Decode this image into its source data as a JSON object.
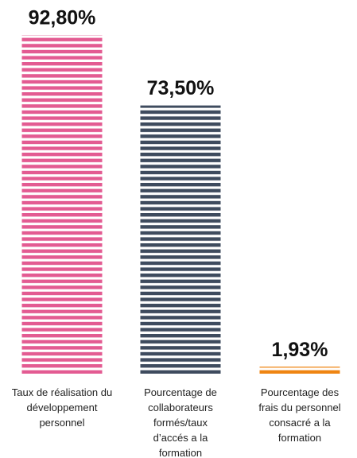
{
  "chart_data": {
    "type": "bar",
    "categories": [
      "Taux de réalisation du développement personnel",
      "Pourcentage de collaborateurs formés/taux d’accés a la formation",
      "Pourcentage des frais du personnel consacré a la formation"
    ],
    "values": [
      92.8,
      73.5,
      1.93
    ],
    "value_labels": [
      "92,80%",
      "73,50%",
      "1,93%"
    ],
    "colors": [
      "#e35b92",
      "#3e4b5e",
      "#ef8512"
    ],
    "ylim": [
      0,
      100
    ]
  }
}
